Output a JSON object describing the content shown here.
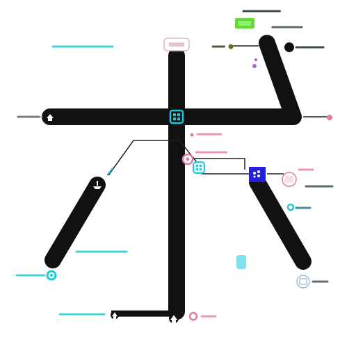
{
  "diagram": {
    "colors": {
      "track": "#111111",
      "cyan": "#1ec8d6",
      "blue": "#2420d8",
      "green": "#63d93a",
      "pink": "#e07aa8",
      "purple": "#a86ad0",
      "olive": "#6b6b22",
      "gray_text": "#7a7a7a",
      "light_cyan": "#7fe0f0",
      "connector": "#222222"
    },
    "nodes": [
      {
        "id": "hub-center",
        "kind": "square-node",
        "color": "#1ec8d6",
        "icon": "grid-icon"
      },
      {
        "id": "left-end",
        "kind": "end-node",
        "color": "#111111",
        "icon": "house-icon"
      },
      {
        "id": "left-diag-end",
        "kind": "end-node",
        "color": "#111111",
        "icon": "ship-icon"
      },
      {
        "id": "bottom-left",
        "kind": "end-node",
        "color": "#111111",
        "icon": "house-icon"
      },
      {
        "id": "bottom-center",
        "kind": "end-node",
        "color": "#111111",
        "icon": "house-icon"
      },
      {
        "id": "cyan-pin",
        "kind": "pin",
        "color": "#1ec8d6"
      },
      {
        "id": "blue-station",
        "kind": "square-node",
        "color": "#2420d8",
        "icon": "cluster-icon"
      },
      {
        "id": "pink-node-mid",
        "kind": "ring-node",
        "color": "#e07aa8"
      },
      {
        "id": "cyan-station-mid",
        "kind": "square-node",
        "color": "#1ec8d6",
        "icon": "grid-icon"
      },
      {
        "id": "green-box",
        "kind": "badge",
        "color": "#63d93a"
      },
      {
        "id": "top-label-box",
        "kind": "badge",
        "color": "#e07aa8"
      },
      {
        "id": "black-dot",
        "kind": "dot",
        "color": "#111111"
      },
      {
        "id": "olive-dot",
        "kind": "dot",
        "color": "#6b6b22"
      },
      {
        "id": "purple-dot",
        "kind": "dot",
        "color": "#a86ad0"
      },
      {
        "id": "pink-dot-right",
        "kind": "dot",
        "color": "#e07aa8"
      },
      {
        "id": "cyan-capsule",
        "kind": "capsule",
        "color": "#7fe0f0"
      },
      {
        "id": "pink-ring-right",
        "kind": "ring-node",
        "color": "#e07aa8"
      },
      {
        "id": "gray-ring-right",
        "kind": "ring-node",
        "color": "#7aa8c8"
      },
      {
        "id": "cyan-ring-right",
        "kind": "ring-node",
        "color": "#1ec8d6"
      },
      {
        "id": "pink-ring-bottom",
        "kind": "ring-node",
        "color": "#e07aa8"
      }
    ]
  }
}
